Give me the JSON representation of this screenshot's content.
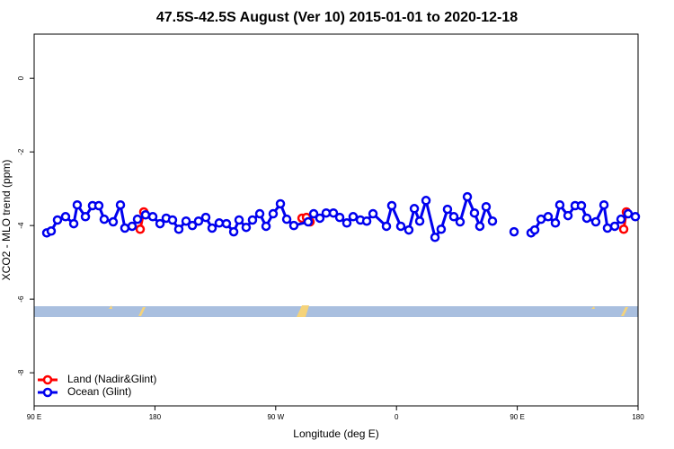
{
  "chart_data": {
    "type": "line",
    "title": "47.5S-42.5S August (Ver 10)   2015-01-01 to 2020-12-18",
    "xlabel": "Longitude (deg E)",
    "ylabel": "XCO2 - MLO trend (ppm)",
    "xlim": [
      90,
      540
    ],
    "ylim": [
      -8.9,
      1.2
    ],
    "xticks": [
      {
        "value": 90,
        "label": "90 E"
      },
      180,
      {
        "value": 270,
        "label": "90 W"
      },
      {
        "value": 360,
        "label": "0"
      },
      {
        "value": 450,
        "label": "90 E"
      },
      {
        "value": 540,
        "label": "180"
      }
    ],
    "yticks": [
      -8,
      -6,
      -4,
      -2,
      0
    ],
    "legend": "bottom-left",
    "series": [
      {
        "name": "Land (Nadir&Glint)",
        "color": "#ff0000",
        "x": [
          169.0,
          171.7,
          250,
          289.6,
          292.9,
          295.6,
          450,
          529.3,
          531.3
        ],
        "values": [
          -4.1,
          -3.63,
          null,
          -3.8,
          -3.78,
          -3.9,
          null,
          -4.1,
          -3.63
        ]
      },
      {
        "name": "Ocean (Glint)",
        "color": "#0000ee",
        "x": [
          99.4,
          102.7,
          107.4,
          113.4,
          119.5,
          122.1,
          128.2,
          133.5,
          138.2,
          142.2,
          148.9,
          154.3,
          157.6,
          163.0,
          167.0,
          173.0,
          178.4,
          183.8,
          188.4,
          193.1,
          197.8,
          203.2,
          207.9,
          212.5,
          217.9,
          222.6,
          227.9,
          233.3,
          238.7,
          242.7,
          248.0,
          252.7,
          258.1,
          262.8,
          268.1,
          273.5,
          278.2,
          283.5,
          294.2,
          298.3,
          302.9,
          307.6,
          313.0,
          317.7,
          323.0,
          327.7,
          333.1,
          337.8,
          342.5,
          352.5,
          356.5,
          363.2,
          369.2,
          373.3,
          377.3,
          382.0,
          388.7,
          393.3,
          398.0,
          402.7,
          407.4,
          412.8,
          418.1,
          422.1,
          426.8,
          431.5,
          437,
          447.6,
          452,
          460.3,
          463.0,
          467.7,
          473.0,
          478.4,
          481.7,
          487.8,
          493.1,
          497.8,
          501.8,
          508.5,
          514.6,
          517.2,
          522.6,
          527.3,
          532.6,
          538.0
        ],
        "values": [
          -4.2,
          -4.15,
          -3.85,
          -3.76,
          -3.95,
          -3.44,
          -3.76,
          -3.46,
          -3.46,
          -3.83,
          -3.9,
          -3.44,
          -4.07,
          -4.02,
          -3.83,
          -3.71,
          -3.76,
          -3.95,
          -3.8,
          -3.85,
          -4.1,
          -3.88,
          -4.0,
          -3.88,
          -3.78,
          -4.07,
          -3.93,
          -3.95,
          -4.17,
          -3.85,
          -4.05,
          -3.85,
          -3.68,
          -4.02,
          -3.68,
          -3.41,
          -3.83,
          -4.0,
          -3.9,
          -3.68,
          -3.8,
          -3.66,
          -3.66,
          -3.78,
          -3.93,
          -3.76,
          -3.85,
          -3.88,
          -3.68,
          -4.02,
          -3.46,
          -4.02,
          -4.12,
          -3.54,
          -3.88,
          -3.32,
          -4.32,
          -4.1,
          -3.56,
          -3.76,
          -3.9,
          -3.22,
          -3.66,
          -4.02,
          -3.49,
          -3.88,
          null,
          -4.17,
          null,
          -4.2,
          -4.12,
          -3.83,
          -3.76,
          -3.93,
          -3.44,
          -3.73,
          -3.46,
          -3.46,
          -3.8,
          -3.9,
          -3.44,
          -4.07,
          -4.02,
          -3.83,
          -3.68,
          -3.76
        ]
      }
    ]
  }
}
